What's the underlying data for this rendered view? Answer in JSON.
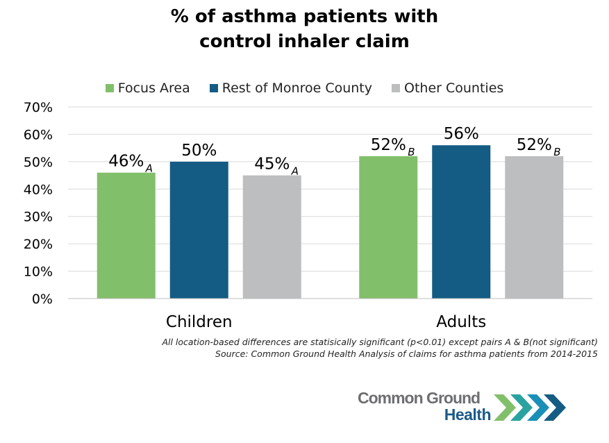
{
  "chart_data": {
    "type": "bar",
    "title_lines": [
      "% of asthma patients with",
      "control inhaler claim"
    ],
    "categories": [
      "Children",
      "Adults"
    ],
    "series": [
      {
        "name": "Focus Area",
        "color": "#82bf6a",
        "values": [
          46,
          52
        ],
        "labels": [
          "46%",
          "52%"
        ],
        "subscripts": [
          "A",
          "B"
        ]
      },
      {
        "name": "Rest of Monroe County",
        "color": "#145c84",
        "values": [
          50,
          56
        ],
        "labels": [
          "50%",
          "56%"
        ],
        "subscripts": [
          "",
          ""
        ]
      },
      {
        "name": "Other Counties",
        "color": "#bcbec0",
        "values": [
          45,
          52
        ],
        "labels": [
          "45%",
          "52%"
        ],
        "subscripts": [
          "A",
          "B"
        ]
      }
    ],
    "ylim": [
      0,
      70
    ],
    "yticks": [
      0,
      10,
      20,
      30,
      40,
      50,
      60,
      70
    ],
    "ytick_labels": [
      "0%",
      "10%",
      "20%",
      "30%",
      "40%",
      "50%",
      "60%",
      "70%"
    ],
    "grid": true,
    "legend_position": "top"
  },
  "footnote": {
    "line1": "All location-based differences are statisically significant (p<0.01) except pairs A & B(not significant)",
    "line2": "Source: Common Ground Health Analysis of claims for asthma patients from 2014-2015"
  },
  "logo": {
    "line1": "Common Ground",
    "line2": "Health",
    "chevron_colors": [
      "#82bf6a",
      "#2aa3a0",
      "#1a8fb8",
      "#145c84"
    ]
  }
}
